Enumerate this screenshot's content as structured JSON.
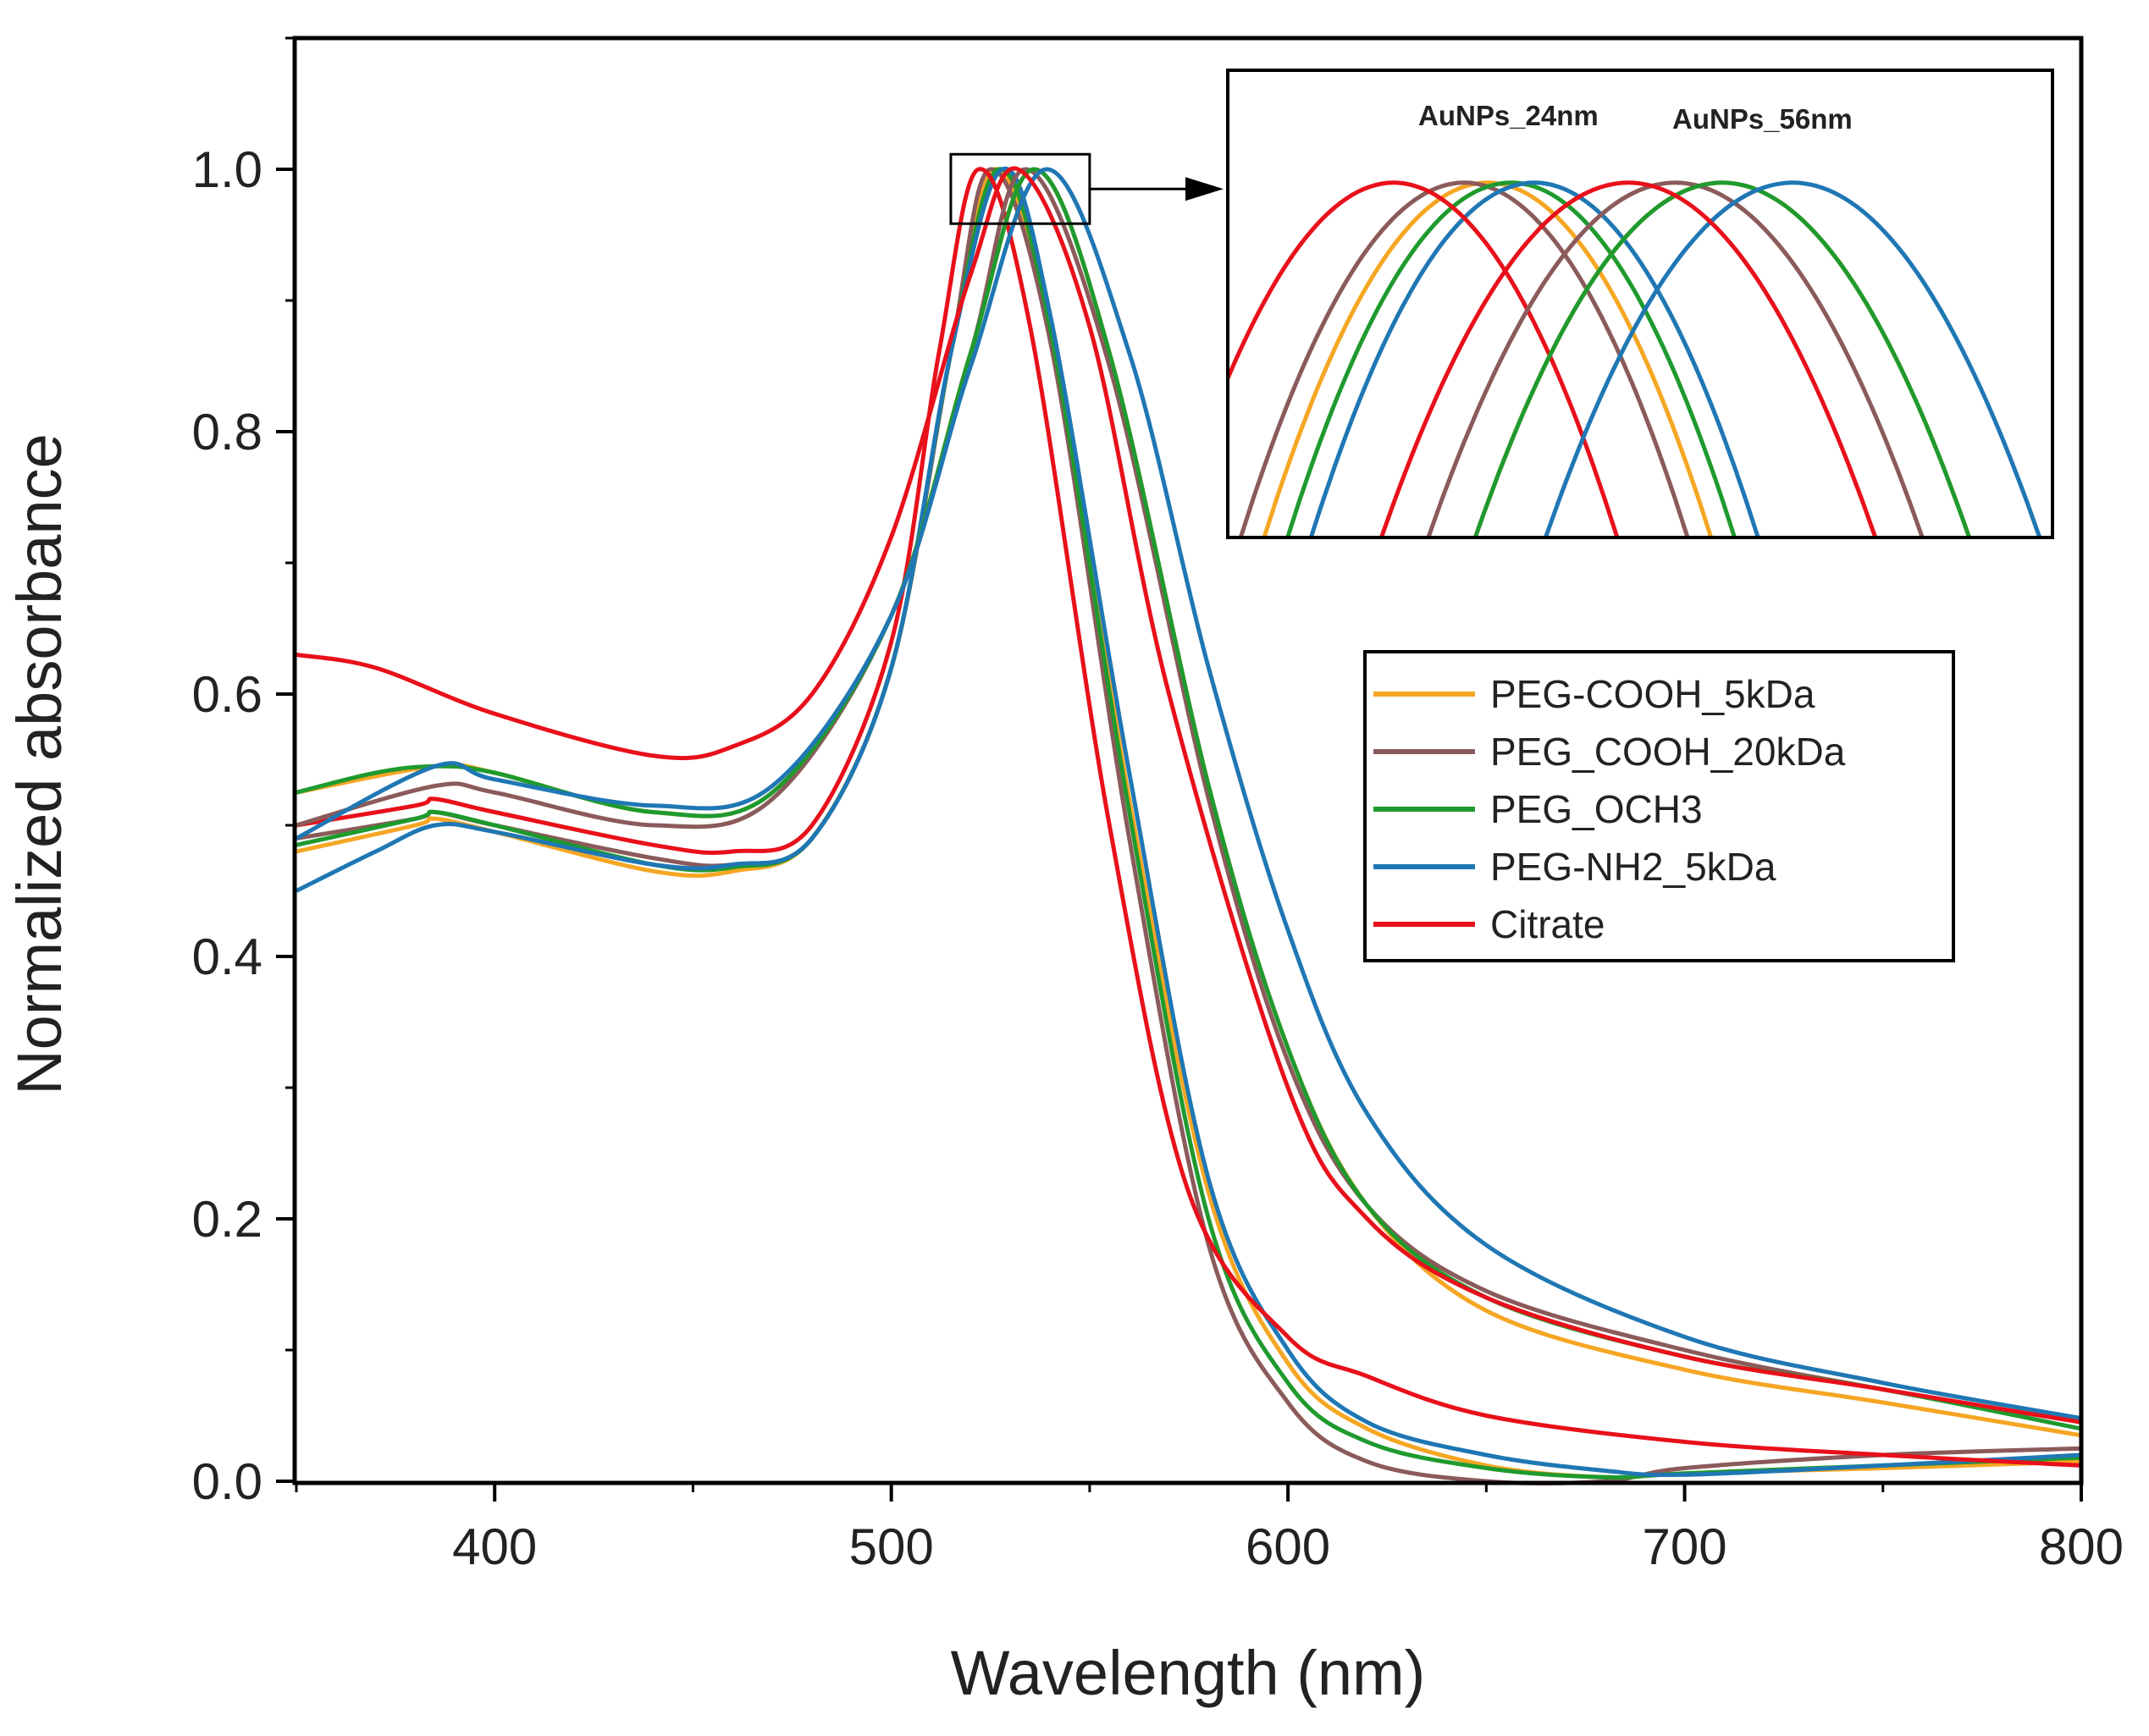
{
  "chart_data": {
    "type": "line",
    "xlabel": "Wavelength (nm)",
    "ylabel": "Normalized absorbance",
    "xlim": [
      350,
      800
    ],
    "ylim": [
      0,
      1.1
    ],
    "xticks": [
      400,
      500,
      600,
      700,
      800
    ],
    "yticks": [
      0.0,
      0.2,
      0.4,
      0.6,
      0.8,
      1.0
    ],
    "x_tick_labels": [
      "400",
      "500",
      "600",
      "700",
      "800"
    ],
    "y_tick_labels": [
      "0.0",
      "0.2",
      "0.4",
      "0.6",
      "0.8",
      "1.0"
    ],
    "grid": false,
    "legend_position": "right-middle",
    "colors": {
      "PEG-COOH_5kDa": "#F5A623",
      "PEG_COOH_20kDa": "#8B5A5A",
      "PEG_OCH3": "#1F9A2E",
      "PEG-NH2_5kDa": "#1F77B4",
      "Citrate": "#E8101A"
    },
    "series": [
      {
        "name": "PEG-COOH_5kDa",
        "group": "AuNPs_24nm",
        "peak_nm": 526,
        "x": [
          350,
          380,
          385,
          400,
          440,
          460,
          480,
          500,
          515,
          526,
          540,
          560,
          580,
          600,
          620,
          650,
          680,
          700,
          750,
          800
        ],
        "y": [
          0.48,
          0.5,
          0.505,
          0.495,
          0.465,
          0.465,
          0.49,
          0.62,
          0.86,
          1.0,
          0.88,
          0.52,
          0.22,
          0.09,
          0.04,
          0.012,
          0.003,
          0.006,
          0.01,
          0.015
        ]
      },
      {
        "name": "PEG_COOH_20kDa",
        "group": "AuNPs_24nm",
        "peak_nm": 525,
        "x": [
          350,
          380,
          385,
          400,
          440,
          460,
          480,
          500,
          515,
          525,
          540,
          560,
          580,
          600,
          620,
          650,
          680,
          700,
          750,
          800
        ],
        "y": [
          0.49,
          0.505,
          0.51,
          0.5,
          0.475,
          0.47,
          0.49,
          0.62,
          0.86,
          1.0,
          0.87,
          0.49,
          0.18,
          0.06,
          0.015,
          -0.01,
          0.0,
          0.01,
          0.02,
          0.025
        ]
      },
      {
        "name": "PEG_OCH3",
        "group": "AuNPs_24nm",
        "peak_nm": 527,
        "x": [
          350,
          380,
          385,
          400,
          440,
          460,
          480,
          500,
          515,
          527,
          540,
          560,
          580,
          600,
          620,
          650,
          680,
          700,
          750,
          800
        ],
        "y": [
          0.485,
          0.505,
          0.51,
          0.5,
          0.47,
          0.468,
          0.49,
          0.62,
          0.86,
          1.0,
          0.88,
          0.51,
          0.2,
          0.075,
          0.03,
          0.01,
          0.003,
          0.006,
          0.012,
          0.018
        ]
      },
      {
        "name": "PEG-NH2_5kDa",
        "group": "AuNPs_24nm",
        "peak_nm": 528,
        "x": [
          350,
          370,
          385,
          400,
          440,
          460,
          480,
          500,
          515,
          528,
          540,
          560,
          580,
          600,
          620,
          650,
          680,
          700,
          750,
          800
        ],
        "y": [
          0.45,
          0.48,
          0.5,
          0.495,
          0.47,
          0.47,
          0.49,
          0.62,
          0.86,
          1.0,
          0.89,
          0.54,
          0.23,
          0.1,
          0.045,
          0.02,
          0.008,
          0.005,
          0.012,
          0.02
        ]
      },
      {
        "name": "Citrate",
        "group": "AuNPs_24nm",
        "peak_nm": 522,
        "x": [
          350,
          380,
          385,
          400,
          440,
          460,
          480,
          500,
          512,
          522,
          535,
          555,
          575,
          600,
          620,
          650,
          700,
          750,
          800
        ],
        "y": [
          0.5,
          0.515,
          0.52,
          0.51,
          0.485,
          0.48,
          0.5,
          0.64,
          0.86,
          1.0,
          0.88,
          0.5,
          0.22,
          0.11,
          0.08,
          0.05,
          0.03,
          0.02,
          0.012
        ]
      },
      {
        "name": "PEG-COOH_5kDa",
        "group": "AuNPs_56nm",
        "peak_nm": 536,
        "x": [
          350,
          385,
          400,
          440,
          470,
          500,
          520,
          536,
          555,
          580,
          600,
          620,
          650,
          700,
          750,
          800
        ],
        "y": [
          0.525,
          0.545,
          0.54,
          0.51,
          0.525,
          0.66,
          0.86,
          1.0,
          0.86,
          0.53,
          0.33,
          0.21,
          0.13,
          0.085,
          0.06,
          0.035
        ]
      },
      {
        "name": "PEG_COOH_20kDa",
        "group": "AuNPs_56nm",
        "peak_nm": 534,
        "x": [
          350,
          385,
          400,
          440,
          470,
          500,
          520,
          534,
          555,
          580,
          600,
          620,
          650,
          700,
          750,
          800
        ],
        "y": [
          0.5,
          0.53,
          0.525,
          0.5,
          0.52,
          0.66,
          0.86,
          1.0,
          0.85,
          0.52,
          0.32,
          0.21,
          0.145,
          0.1,
          0.07,
          0.045
        ]
      },
      {
        "name": "PEG_OCH3",
        "group": "AuNPs_56nm",
        "peak_nm": 536,
        "x": [
          350,
          370,
          385,
          400,
          440,
          470,
          500,
          520,
          536,
          555,
          580,
          600,
          620,
          650,
          700,
          750,
          800
        ],
        "y": [
          0.525,
          0.54,
          0.545,
          0.54,
          0.51,
          0.525,
          0.66,
          0.86,
          1.0,
          0.86,
          0.53,
          0.33,
          0.21,
          0.14,
          0.095,
          0.07,
          0.04
        ]
      },
      {
        "name": "PEG-NH2_5kDa",
        "group": "AuNPs_56nm",
        "peak_nm": 539,
        "x": [
          350,
          385,
          400,
          440,
          470,
          500,
          520,
          539,
          560,
          580,
          600,
          620,
          650,
          700,
          750,
          800
        ],
        "y": [
          0.49,
          0.545,
          0.535,
          0.515,
          0.53,
          0.66,
          0.85,
          1.0,
          0.86,
          0.62,
          0.42,
          0.28,
          0.18,
          0.11,
          0.075,
          0.048
        ]
      },
      {
        "name": "Citrate",
        "group": "AuNPs_56nm",
        "peak_nm": 532,
        "x": [
          350,
          370,
          400,
          440,
          460,
          480,
          500,
          520,
          532,
          550,
          570,
          600,
          620,
          650,
          700,
          750,
          800
        ],
        "y": [
          0.63,
          0.62,
          0.585,
          0.553,
          0.56,
          0.6,
          0.72,
          0.92,
          1.0,
          0.88,
          0.6,
          0.3,
          0.2,
          0.14,
          0.095,
          0.07,
          0.045
        ]
      }
    ],
    "inset": {
      "labels": [
        "AuNPs_24nm",
        "AuNPs_56nm"
      ],
      "zoom_region": {
        "x": [
          515,
          550
        ],
        "y": [
          0.965,
          1.005
        ]
      }
    }
  }
}
